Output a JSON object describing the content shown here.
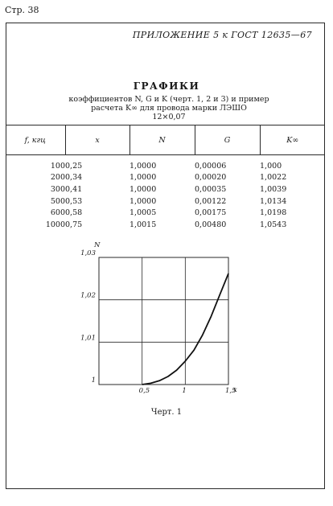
{
  "header": {
    "page_number": "Стр. 38",
    "appendix": "ПРИЛОЖЕНИЕ 5 к ГОСТ 12635—67"
  },
  "section": {
    "title": "ГРАФИКИ",
    "subtitle_line1": "коэффициентов N, G и K (черт. 1, 2 и 3) и пример",
    "subtitle_line2": "расчета K∞ для провода марки ЛЭШО",
    "subtitle_line3": "12×0,07"
  },
  "table": {
    "headers": [
      "f, кгц",
      "x",
      "N",
      "G",
      "K∞"
    ],
    "rows": [
      [
        "100",
        "0,25",
        "1,0000",
        "0,00006",
        "1,000"
      ],
      [
        "200",
        "0,34",
        "1,0000",
        "0,00020",
        "1,0022"
      ],
      [
        "300",
        "0,41",
        "1,0000",
        "0,00035",
        "1,0039"
      ],
      [
        "500",
        "0,53",
        "1,0000",
        "0,00122",
        "1,0134"
      ],
      [
        "600",
        "0,58",
        "1,0005",
        "0,00175",
        "1,0198"
      ],
      [
        "1000",
        "0,75",
        "1,0015",
        "0,00480",
        "1,0543"
      ]
    ]
  },
  "chart_data": {
    "type": "line",
    "ylabel": "N",
    "xlabel": "x",
    "xlim": [
      0,
      1.5
    ],
    "ylim": [
      1,
      1.03
    ],
    "x_ticks": [
      {
        "value": 0.5,
        "label": "0,5"
      },
      {
        "value": 1,
        "label": "1"
      },
      {
        "value": 1.5,
        "label": "1,5"
      }
    ],
    "y_ticks": [
      {
        "value": 1,
        "label": "1"
      },
      {
        "value": 1.01,
        "label": "1,01"
      },
      {
        "value": 1.02,
        "label": "1,02"
      },
      {
        "value": 1.03,
        "label": "1,03"
      }
    ],
    "grid": true,
    "series": [
      {
        "x": [
          0.5,
          0.6,
          0.7,
          0.8,
          0.9,
          1.0,
          1.1,
          1.2,
          1.3,
          1.4,
          1.5
        ],
        "y": [
          1.0,
          1.0003,
          1.0009,
          1.0019,
          1.0034,
          1.0055,
          1.0081,
          1.0117,
          1.0161,
          1.0212,
          1.0262
        ]
      }
    ]
  },
  "caption": "Черт. 1"
}
